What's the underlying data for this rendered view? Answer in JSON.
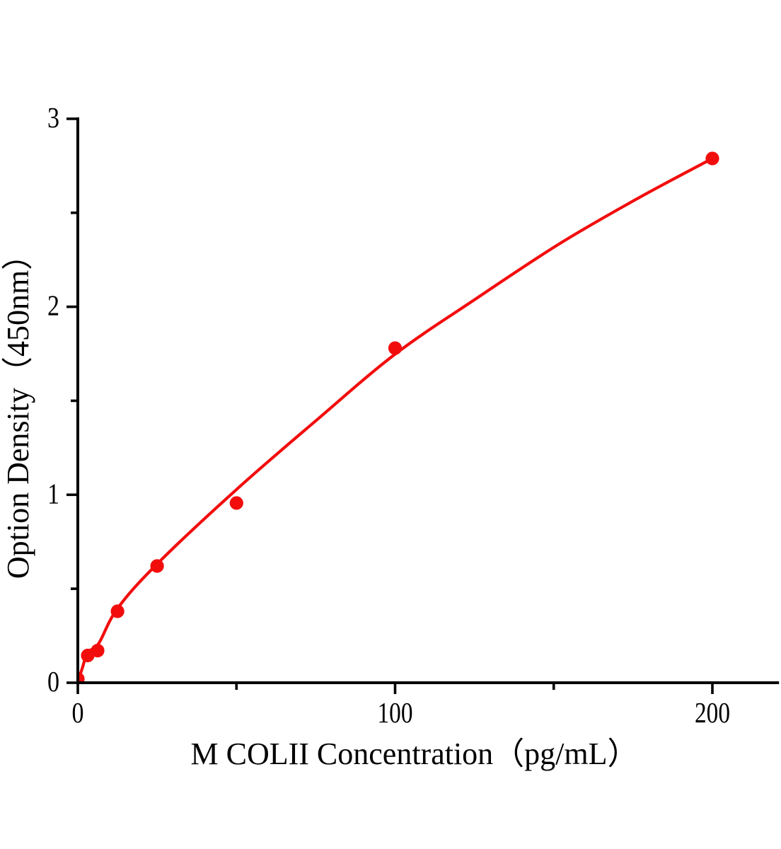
{
  "chart_data": {
    "type": "scatter",
    "title": "",
    "xlabel": "M COLII Concentration（pg/mL）",
    "ylabel": "Option Density（450nm）",
    "xlim": [
      0,
      221
    ],
    "ylim": [
      0,
      3
    ],
    "x_ticks": [
      0,
      100,
      200
    ],
    "x_minor_ticks": [
      50,
      150
    ],
    "y_ticks": [
      0,
      1,
      2,
      3
    ],
    "y_minor_ticks": [
      0.5,
      1.5,
      2.5
    ],
    "grid": false,
    "legend": false,
    "axis_color": "#000000",
    "series": [
      {
        "name": "standard-points",
        "type": "scatter",
        "color": "#f20d0d",
        "points": [
          [
            0,
            0.02
          ],
          [
            3.125,
            0.145
          ],
          [
            6.25,
            0.171
          ],
          [
            12.5,
            0.38
          ],
          [
            25,
            0.621
          ],
          [
            50,
            0.956
          ],
          [
            100,
            1.78
          ],
          [
            200,
            2.789
          ]
        ]
      },
      {
        "name": "fit-curve",
        "type": "line",
        "color": "#f20d0d",
        "points": [
          [
            0,
            0.005
          ],
          [
            1.5,
            0.082
          ],
          [
            3.1,
            0.162
          ],
          [
            6.5,
            0.207
          ],
          [
            12.5,
            0.395
          ],
          [
            25,
            0.632
          ],
          [
            50,
            1.028
          ],
          [
            75.8,
            1.405
          ],
          [
            100,
            1.748
          ],
          [
            124.9,
            2.036
          ],
          [
            151.6,
            2.333
          ],
          [
            176.2,
            2.574
          ],
          [
            200,
            2.789
          ]
        ]
      }
    ]
  }
}
